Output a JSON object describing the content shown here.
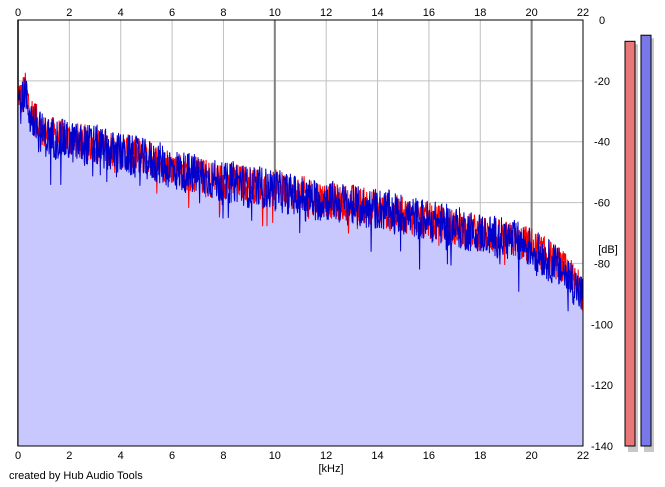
{
  "credit": "created by Hub Audio Tools",
  "chart_data": {
    "type": "area",
    "title": "",
    "xlabel": "[kHz]",
    "ylabel": "[dB]",
    "xlim": [
      0,
      22
    ],
    "ylim": [
      -140,
      0
    ],
    "x_ticks": [
      0,
      2,
      4,
      6,
      8,
      10,
      12,
      14,
      16,
      18,
      20,
      22
    ],
    "x_tick_labels": [
      "0",
      "2",
      "4",
      "6",
      "8",
      "10",
      "12",
      "14",
      "16",
      "18",
      "20",
      "22"
    ],
    "y_ticks": [
      0,
      -20,
      -40,
      -60,
      -80,
      -100,
      -120,
      -140
    ],
    "y_tick_labels": [
      "0",
      "-20",
      "-40",
      "-60",
      "-80",
      "-100",
      "-120",
      "-140"
    ],
    "grid": true,
    "colors": {
      "left_channel": "#ff0000",
      "right_channel": "#0000cc",
      "fill": "#c8c8ff",
      "grid_minor": "#c0c0c0",
      "grid_major": "#808080",
      "axis": "#000000"
    },
    "series": [
      {
        "x": [
          0.05,
          0.15,
          0.25,
          0.35,
          0.5,
          0.75,
          1,
          1.5,
          2,
          2.5,
          3,
          3.5,
          4,
          4.5,
          5,
          5.5,
          6,
          6.5,
          7,
          7.5,
          8,
          8.5,
          9,
          9.5,
          10,
          10.5,
          11,
          11.5,
          12,
          12.5,
          13,
          13.5,
          14,
          14.5,
          15,
          15.5,
          16,
          16.5,
          17,
          17.5,
          18,
          18.5,
          19,
          19.5,
          20,
          20.5,
          21,
          21.5,
          22
        ],
        "values": [
          -24,
          -26,
          -22,
          -25,
          -30,
          -34,
          -37,
          -38,
          -39,
          -40,
          -41,
          -42,
          -43,
          -44,
          -45,
          -47,
          -48,
          -50,
          -51,
          -52,
          -53,
          -53,
          -54,
          -55,
          -55,
          -56,
          -57,
          -58,
          -59,
          -60,
          -60,
          -61,
          -62,
          -63,
          -64,
          -65,
          -66,
          -67,
          -68,
          -69,
          -70,
          -71,
          -72,
          -73,
          -74,
          -77,
          -80,
          -84,
          -90
        ]
      },
      {
        "x": [
          0.05,
          0.15,
          0.25,
          0.35,
          0.5,
          0.75,
          1,
          1.5,
          2,
          2.5,
          3,
          3.5,
          4,
          4.5,
          5,
          5.5,
          6,
          6.5,
          7,
          7.5,
          8,
          8.5,
          9,
          9.5,
          10,
          10.5,
          11,
          11.5,
          12,
          12.5,
          13,
          13.5,
          14,
          14.5,
          15,
          15.5,
          16,
          16.5,
          17,
          17.5,
          18,
          18.5,
          19,
          19.5,
          20,
          20.5,
          21,
          21.5,
          22
        ],
        "values": [
          -26,
          -28,
          -23,
          -27,
          -32,
          -35,
          -38,
          -39,
          -40,
          -41,
          -41,
          -43,
          -44,
          -45,
          -46,
          -47,
          -49,
          -50,
          -51,
          -52,
          -54,
          -53,
          -55,
          -55,
          -56,
          -57,
          -58,
          -59,
          -59,
          -60,
          -61,
          -62,
          -62,
          -63,
          -64,
          -65,
          -66,
          -67,
          -68,
          -69,
          -70,
          -71,
          -72,
          -73,
          -75,
          -78,
          -81,
          -85,
          -91
        ]
      }
    ],
    "peak_meters": [
      {
        "value": -7,
        "color": "#e87878"
      },
      {
        "value": -5,
        "color": "#7878e8"
      }
    ]
  }
}
